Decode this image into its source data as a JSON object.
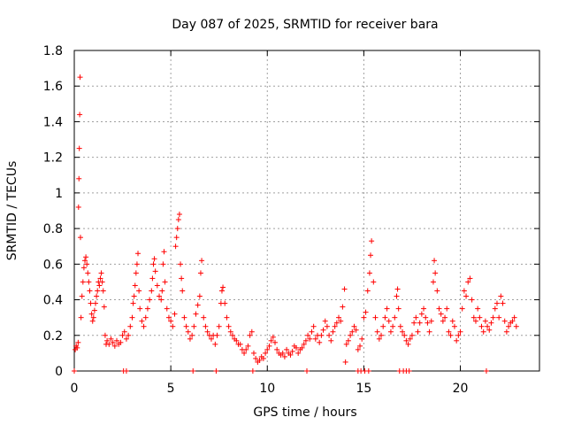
{
  "chart_data": {
    "type": "scatter",
    "title": "Day 087 of 2025, SRMTID for receiver bara",
    "xlabel": "GPS time / hours",
    "ylabel": "SRMTID / TECUs",
    "xlim": [
      0,
      24.1
    ],
    "ylim": [
      0,
      1.8
    ],
    "xticks": [
      0,
      5,
      10,
      15,
      20
    ],
    "xtick_labels": [
      "0",
      "5",
      "10",
      "15",
      "20"
    ],
    "yticks": [
      0,
      0.2,
      0.4,
      0.6,
      0.8,
      1,
      1.2,
      1.4,
      1.6,
      1.8
    ],
    "ytick_labels": [
      "0",
      "0.2",
      "0.4",
      "0.6",
      "0.8",
      "1",
      "1.2",
      "1.4",
      "1.6",
      "1.8"
    ],
    "grid": true,
    "marker": "+",
    "color": "#ff0000",
    "series": [
      {
        "name": "SRMTID",
        "points": [
          [
            0.05,
            0.12
          ],
          [
            0.1,
            0.14
          ],
          [
            0.15,
            0.13
          ],
          [
            0.2,
            0.16
          ],
          [
            0.22,
            0.92
          ],
          [
            0.24,
            1.08
          ],
          [
            0.26,
            1.25
          ],
          [
            0.28,
            1.44
          ],
          [
            0.3,
            1.65
          ],
          [
            0.32,
            0.75
          ],
          [
            0.35,
            0.3
          ],
          [
            0.4,
            0.42
          ],
          [
            0.45,
            0.5
          ],
          [
            0.5,
            0.58
          ],
          [
            0.55,
            0.62
          ],
          [
            0.6,
            0.64
          ],
          [
            0.65,
            0.6
          ],
          [
            0.7,
            0.55
          ],
          [
            0.75,
            0.5
          ],
          [
            0.8,
            0.45
          ],
          [
            0.85,
            0.38
          ],
          [
            0.9,
            0.32
          ],
          [
            0.95,
            0.28
          ],
          [
            1.0,
            0.3
          ],
          [
            1.05,
            0.34
          ],
          [
            1.1,
            0.38
          ],
          [
            1.15,
            0.42
          ],
          [
            1.2,
            0.45
          ],
          [
            1.25,
            0.5
          ],
          [
            1.3,
            0.48
          ],
          [
            1.35,
            0.52
          ],
          [
            1.4,
            0.55
          ],
          [
            1.45,
            0.5
          ],
          [
            1.5,
            0.45
          ],
          [
            1.55,
            0.36
          ],
          [
            1.6,
            0.2
          ],
          [
            1.65,
            0.15
          ],
          [
            1.7,
            0.17
          ],
          [
            1.8,
            0.15
          ],
          [
            1.9,
            0.18
          ],
          [
            2.0,
            0.16
          ],
          [
            2.1,
            0.14
          ],
          [
            2.2,
            0.17
          ],
          [
            2.3,
            0.15
          ],
          [
            2.4,
            0.16
          ],
          [
            2.5,
            0.2
          ],
          [
            2.6,
            0.22
          ],
          [
            2.7,
            0.18
          ],
          [
            2.8,
            0.2
          ],
          [
            2.9,
            0.25
          ],
          [
            3.0,
            0.3
          ],
          [
            3.05,
            0.38
          ],
          [
            3.1,
            0.42
          ],
          [
            3.15,
            0.48
          ],
          [
            3.2,
            0.55
          ],
          [
            3.25,
            0.6
          ],
          [
            3.3,
            0.66
          ],
          [
            3.35,
            0.45
          ],
          [
            3.4,
            0.35
          ],
          [
            3.5,
            0.28
          ],
          [
            3.6,
            0.25
          ],
          [
            3.7,
            0.3
          ],
          [
            3.8,
            0.35
          ],
          [
            3.9,
            0.4
          ],
          [
            4.0,
            0.45
          ],
          [
            4.05,
            0.52
          ],
          [
            4.1,
            0.6
          ],
          [
            4.15,
            0.63
          ],
          [
            4.2,
            0.56
          ],
          [
            4.3,
            0.48
          ],
          [
            4.4,
            0.42
          ],
          [
            4.5,
            0.4
          ],
          [
            4.55,
            0.45
          ],
          [
            4.6,
            0.6
          ],
          [
            4.65,
            0.67
          ],
          [
            4.7,
            0.5
          ],
          [
            4.8,
            0.35
          ],
          [
            4.9,
            0.3
          ],
          [
            5.0,
            0.28
          ],
          [
            5.1,
            0.25
          ],
          [
            5.2,
            0.32
          ],
          [
            5.25,
            0.7
          ],
          [
            5.3,
            0.75
          ],
          [
            5.35,
            0.8
          ],
          [
            5.4,
            0.85
          ],
          [
            5.45,
            0.88
          ],
          [
            5.5,
            0.6
          ],
          [
            5.55,
            0.52
          ],
          [
            5.6,
            0.45
          ],
          [
            5.7,
            0.3
          ],
          [
            5.8,
            0.25
          ],
          [
            5.9,
            0.22
          ],
          [
            6.0,
            0.18
          ],
          [
            6.1,
            0.2
          ],
          [
            6.2,
            0.25
          ],
          [
            6.3,
            0.32
          ],
          [
            6.4,
            0.37
          ],
          [
            6.5,
            0.42
          ],
          [
            6.55,
            0.55
          ],
          [
            6.6,
            0.62
          ],
          [
            6.7,
            0.3
          ],
          [
            6.8,
            0.25
          ],
          [
            6.9,
            0.22
          ],
          [
            7.0,
            0.2
          ],
          [
            7.1,
            0.18
          ],
          [
            7.2,
            0.2
          ],
          [
            7.3,
            0.15
          ],
          [
            7.4,
            0.2
          ],
          [
            7.5,
            0.25
          ],
          [
            7.6,
            0.38
          ],
          [
            7.65,
            0.45
          ],
          [
            7.7,
            0.47
          ],
          [
            7.8,
            0.38
          ],
          [
            7.9,
            0.3
          ],
          [
            8.0,
            0.25
          ],
          [
            8.1,
            0.22
          ],
          [
            8.2,
            0.2
          ],
          [
            8.3,
            0.18
          ],
          [
            8.4,
            0.17
          ],
          [
            8.5,
            0.15
          ],
          [
            8.6,
            0.15
          ],
          [
            8.7,
            0.12
          ],
          [
            8.8,
            0.1
          ],
          [
            8.9,
            0.12
          ],
          [
            9.0,
            0.14
          ],
          [
            9.1,
            0.2
          ],
          [
            9.2,
            0.22
          ],
          [
            9.3,
            0.1
          ],
          [
            9.4,
            0.07
          ],
          [
            9.5,
            0.05
          ],
          [
            9.6,
            0.06
          ],
          [
            9.7,
            0.08
          ],
          [
            9.8,
            0.07
          ],
          [
            9.9,
            0.1
          ],
          [
            10.0,
            0.12
          ],
          [
            10.1,
            0.14
          ],
          [
            10.2,
            0.17
          ],
          [
            10.3,
            0.19
          ],
          [
            10.4,
            0.16
          ],
          [
            10.5,
            0.12
          ],
          [
            10.6,
            0.1
          ],
          [
            10.7,
            0.09
          ],
          [
            10.8,
            0.1
          ],
          [
            10.9,
            0.08
          ],
          [
            11.0,
            0.12
          ],
          [
            11.1,
            0.1
          ],
          [
            11.2,
            0.09
          ],
          [
            11.3,
            0.11
          ],
          [
            11.4,
            0.14
          ],
          [
            11.5,
            0.13
          ],
          [
            11.6,
            0.1
          ],
          [
            11.7,
            0.12
          ],
          [
            11.8,
            0.13
          ],
          [
            11.9,
            0.15
          ],
          [
            12.0,
            0.17
          ],
          [
            12.1,
            0.2
          ],
          [
            12.2,
            0.18
          ],
          [
            12.3,
            0.22
          ],
          [
            12.4,
            0.25
          ],
          [
            12.5,
            0.18
          ],
          [
            12.6,
            0.2
          ],
          [
            12.7,
            0.16
          ],
          [
            12.8,
            0.2
          ],
          [
            12.9,
            0.23
          ],
          [
            13.0,
            0.28
          ],
          [
            13.1,
            0.25
          ],
          [
            13.2,
            0.2
          ],
          [
            13.3,
            0.17
          ],
          [
            13.4,
            0.22
          ],
          [
            13.5,
            0.25
          ],
          [
            13.6,
            0.27
          ],
          [
            13.7,
            0.3
          ],
          [
            13.8,
            0.28
          ],
          [
            13.9,
            0.36
          ],
          [
            14.0,
            0.46
          ],
          [
            14.05,
            0.05
          ],
          [
            14.1,
            0.15
          ],
          [
            14.2,
            0.17
          ],
          [
            14.3,
            0.2
          ],
          [
            14.4,
            0.22
          ],
          [
            14.5,
            0.25
          ],
          [
            14.6,
            0.23
          ],
          [
            14.7,
            0.12
          ],
          [
            14.8,
            0.14
          ],
          [
            14.9,
            0.18
          ],
          [
            15.0,
            0.3
          ],
          [
            15.1,
            0.33
          ],
          [
            15.2,
            0.45
          ],
          [
            15.3,
            0.55
          ],
          [
            15.35,
            0.65
          ],
          [
            15.4,
            0.73
          ],
          [
            15.5,
            0.5
          ],
          [
            15.6,
            0.3
          ],
          [
            15.7,
            0.22
          ],
          [
            15.8,
            0.18
          ],
          [
            15.9,
            0.2
          ],
          [
            16.0,
            0.25
          ],
          [
            16.1,
            0.3
          ],
          [
            16.2,
            0.35
          ],
          [
            16.3,
            0.28
          ],
          [
            16.4,
            0.22
          ],
          [
            16.5,
            0.25
          ],
          [
            16.6,
            0.3
          ],
          [
            16.7,
            0.42
          ],
          [
            16.75,
            0.46
          ],
          [
            16.8,
            0.35
          ],
          [
            16.9,
            0.25
          ],
          [
            17.0,
            0.22
          ],
          [
            17.1,
            0.2
          ],
          [
            17.2,
            0.17
          ],
          [
            17.3,
            0.15
          ],
          [
            17.4,
            0.18
          ],
          [
            17.5,
            0.2
          ],
          [
            17.6,
            0.27
          ],
          [
            17.7,
            0.3
          ],
          [
            17.8,
            0.22
          ],
          [
            17.9,
            0.27
          ],
          [
            18.0,
            0.32
          ],
          [
            18.1,
            0.35
          ],
          [
            18.2,
            0.3
          ],
          [
            18.3,
            0.27
          ],
          [
            18.4,
            0.22
          ],
          [
            18.5,
            0.28
          ],
          [
            18.6,
            0.5
          ],
          [
            18.65,
            0.62
          ],
          [
            18.7,
            0.55
          ],
          [
            18.8,
            0.45
          ],
          [
            18.9,
            0.35
          ],
          [
            19.0,
            0.32
          ],
          [
            19.1,
            0.28
          ],
          [
            19.2,
            0.3
          ],
          [
            19.3,
            0.35
          ],
          [
            19.4,
            0.22
          ],
          [
            19.5,
            0.2
          ],
          [
            19.6,
            0.28
          ],
          [
            19.7,
            0.25
          ],
          [
            19.8,
            0.17
          ],
          [
            19.9,
            0.2
          ],
          [
            20.0,
            0.22
          ],
          [
            20.1,
            0.35
          ],
          [
            20.2,
            0.45
          ],
          [
            20.3,
            0.42
          ],
          [
            20.4,
            0.5
          ],
          [
            20.5,
            0.52
          ],
          [
            20.6,
            0.4
          ],
          [
            20.7,
            0.3
          ],
          [
            20.8,
            0.28
          ],
          [
            20.9,
            0.35
          ],
          [
            21.0,
            0.3
          ],
          [
            21.1,
            0.25
          ],
          [
            21.2,
            0.22
          ],
          [
            21.3,
            0.28
          ],
          [
            21.4,
            0.25
          ],
          [
            21.5,
            0.23
          ],
          [
            21.6,
            0.27
          ],
          [
            21.7,
            0.3
          ],
          [
            21.8,
            0.35
          ],
          [
            21.9,
            0.38
          ],
          [
            22.0,
            0.3
          ],
          [
            22.1,
            0.42
          ],
          [
            22.2,
            0.38
          ],
          [
            22.3,
            0.28
          ],
          [
            22.4,
            0.22
          ],
          [
            22.5,
            0.25
          ],
          [
            22.6,
            0.27
          ],
          [
            22.7,
            0.28
          ],
          [
            22.8,
            0.3
          ],
          [
            22.9,
            0.25
          ],
          [
            0.0,
            0.0
          ],
          [
            2.55,
            0.0
          ],
          [
            2.7,
            0.0
          ],
          [
            6.15,
            0.0
          ],
          [
            7.35,
            0.0
          ],
          [
            9.25,
            0.0
          ],
          [
            12.05,
            0.0
          ],
          [
            14.7,
            0.0
          ],
          [
            14.85,
            0.0
          ],
          [
            15.05,
            0.0
          ],
          [
            15.25,
            0.0
          ],
          [
            16.85,
            0.0
          ],
          [
            17.05,
            0.0
          ],
          [
            17.2,
            0.0
          ],
          [
            17.35,
            0.0
          ],
          [
            21.35,
            0.0
          ]
        ]
      }
    ]
  }
}
